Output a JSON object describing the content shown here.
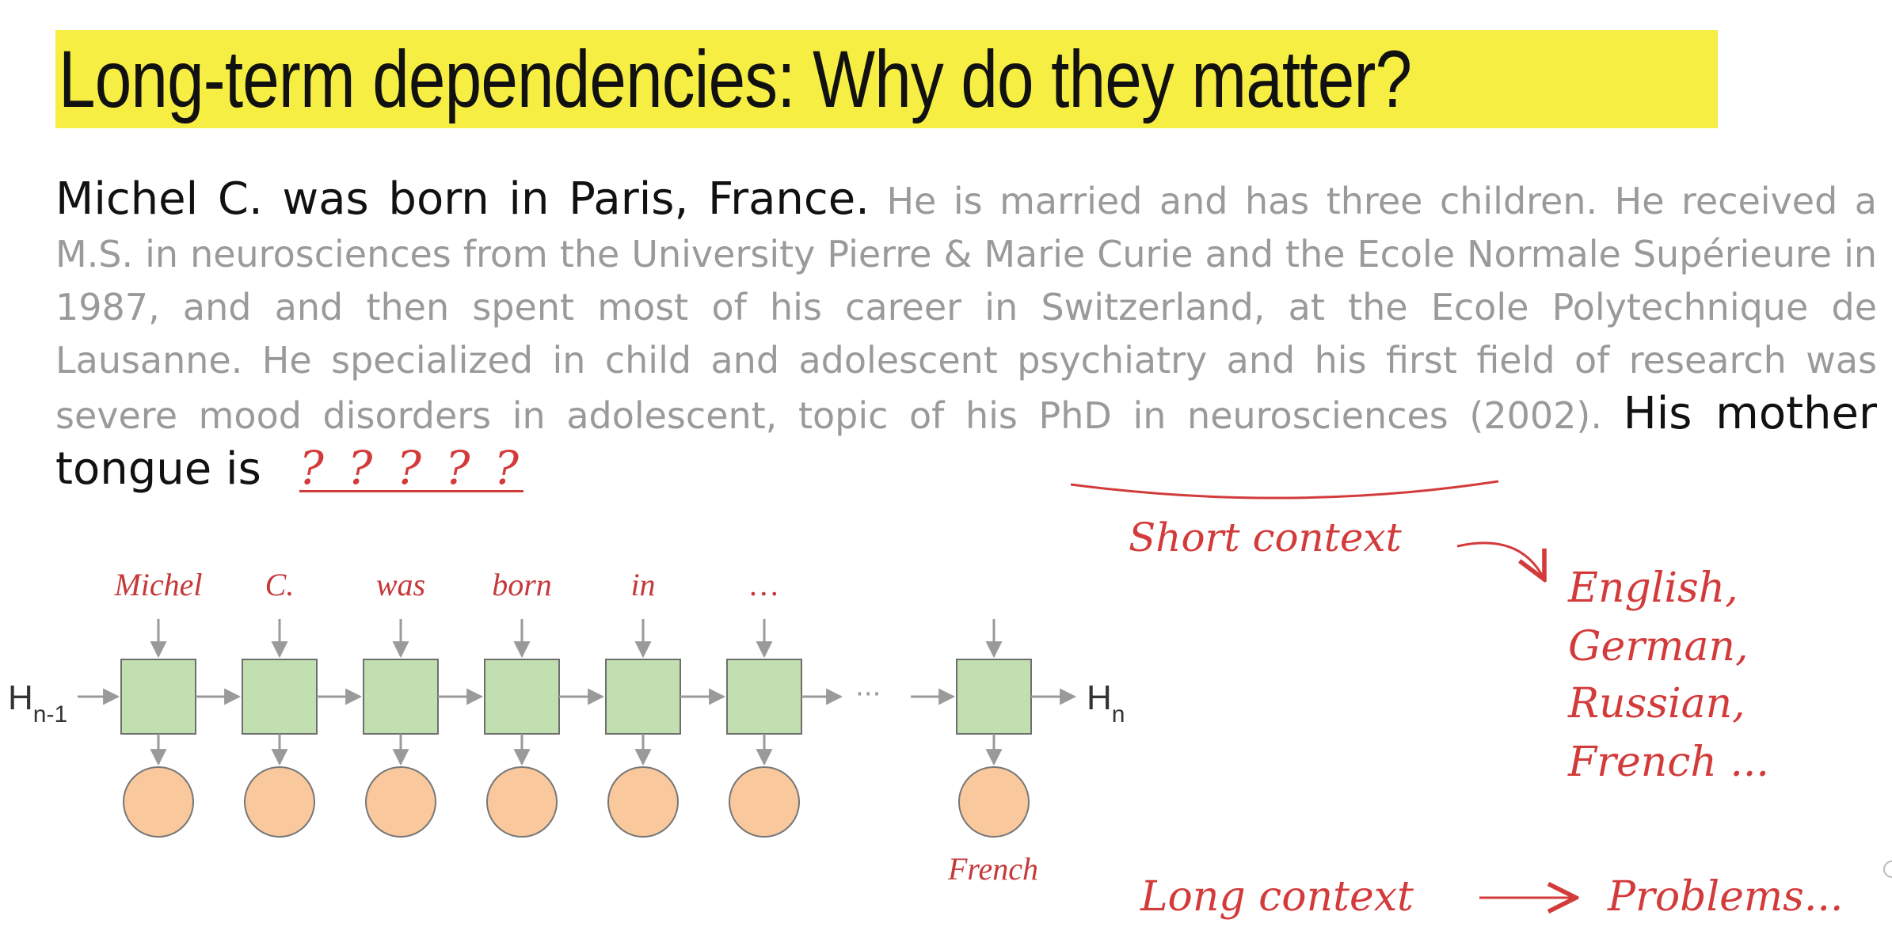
{
  "slide": {
    "title": "Long-term dependencies: Why do they matter?",
    "paragraph": {
      "lead": "Michel C. was born in Paris, France.",
      "middle": "He is married and has three children. He received a M.S. in neurosciences from the University Pierre & Marie Curie and the Ecole Normale Supérieure in 1987, and and then spent most of his career in Switzerland, at the Ecole Polytechnique de Lausanne. He specialized in child and adolescent psychiatry and his first field of research was severe mood disorders in adolescent, topic of his PhD in neurosciences (2002).",
      "question": "His mother tongue is",
      "blank": "? ? ? ? ?"
    },
    "colors": {
      "title_highlight": "#f6ee43",
      "cell_fill": "#c2dfb2",
      "output_fill": "#f9c89c",
      "annotation_red": "#d33b3b"
    }
  },
  "diagram": {
    "hidden_in": {
      "base": "H",
      "sub": "n-1"
    },
    "hidden_out": {
      "base": "H",
      "sub": "n"
    },
    "input_tokens": [
      "Michel",
      "C.",
      "was",
      "born",
      "in",
      "…"
    ],
    "ellipsis": "···",
    "final_output": "French"
  },
  "annotations": {
    "short_context": "Short context",
    "candidates": [
      "English,",
      "German,",
      "Russian,",
      "French ..."
    ],
    "long_context": "Long context",
    "problems": "Problems..."
  }
}
